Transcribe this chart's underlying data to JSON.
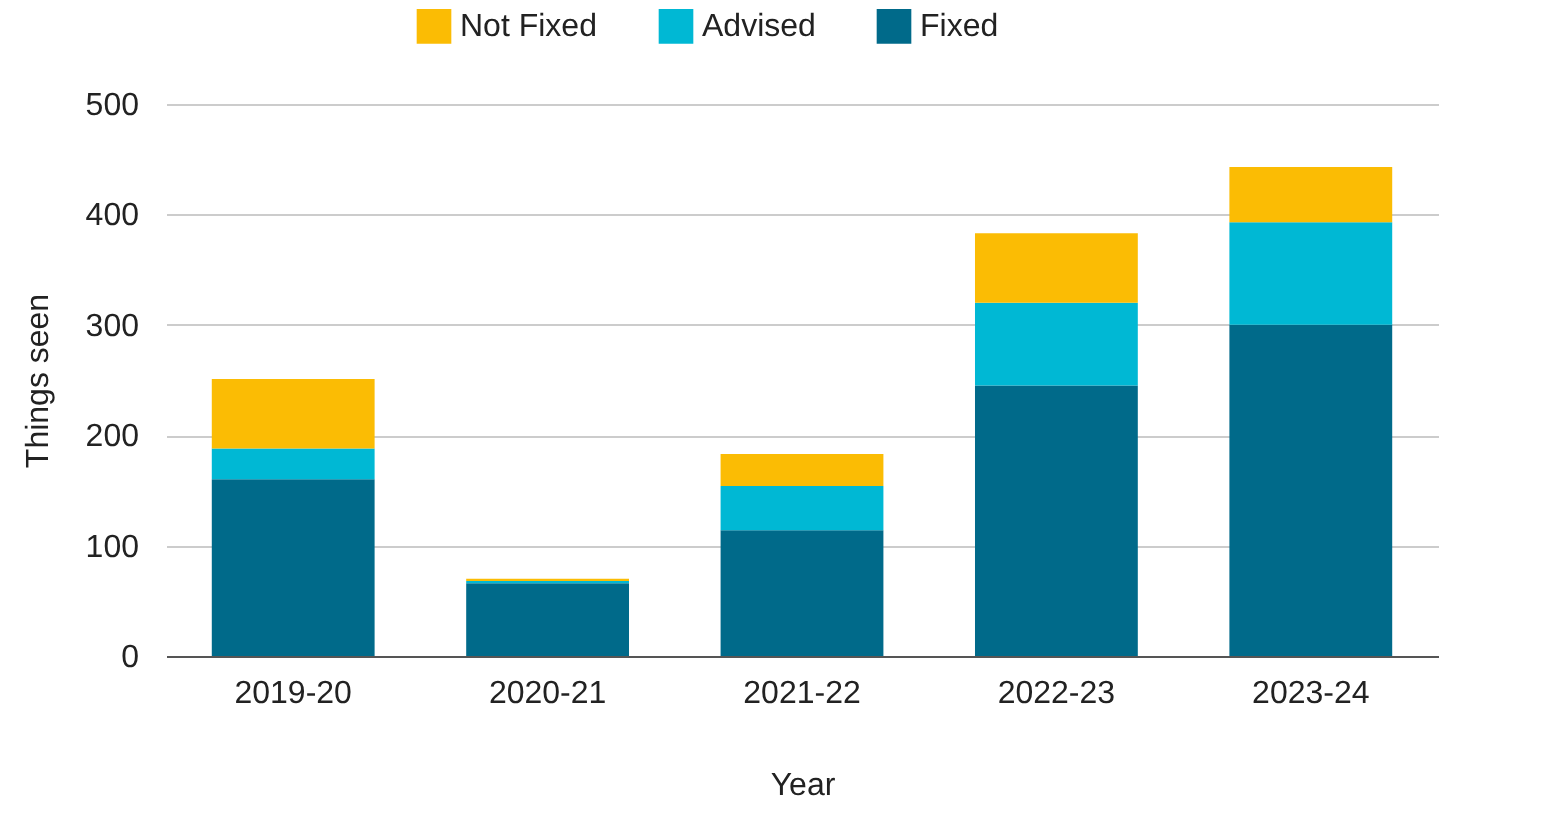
{
  "chart_data": {
    "type": "bar",
    "stacked": true,
    "xlabel": "Year",
    "ylabel": "Things seen",
    "categories": [
      "2019-20",
      "2020-21",
      "2021-22",
      "2022-23",
      "2023-24"
    ],
    "series": [
      {
        "name": "Fixed",
        "color": "#006a8a",
        "values": [
          160,
          66,
          114,
          245,
          300
        ]
      },
      {
        "name": "Advised",
        "color": "#00b8d4",
        "values": [
          28,
          2,
          40,
          75,
          93
        ]
      },
      {
        "name": "Not Fixed",
        "color": "#fbbc04",
        "values": [
          63,
          2,
          29,
          63,
          50
        ]
      }
    ],
    "ylim": [
      0,
      500
    ],
    "yticks": [
      0,
      100,
      200,
      300,
      400,
      500
    ],
    "grid": "y",
    "legend": "top"
  }
}
